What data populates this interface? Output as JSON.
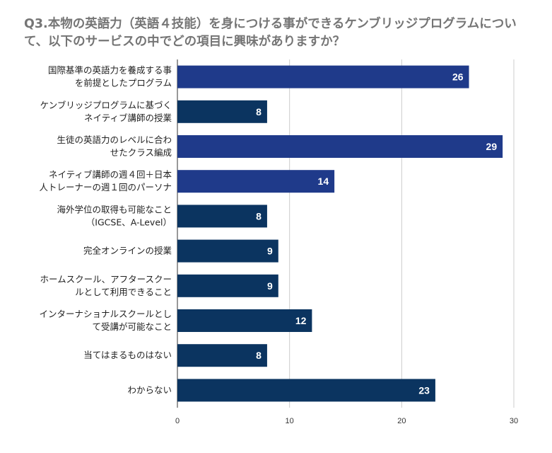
{
  "chart_data": {
    "type": "bar",
    "orientation": "horizontal",
    "title": "Q3.本物の英語力（英語４技能）を身につける事ができるケンブリッジプログラムについて、以下のサービスの中でどの項目に興味がありますか？",
    "categories": [
      [
        "国際基準の英語力を養成する事",
        "を前提としたプログラム"
      ],
      [
        "ケンブリッジプログラムに基づく",
        "ネイティブ講師の授業"
      ],
      [
        "生徒の英語力のレベルに合わ",
        "せたクラス編成"
      ],
      [
        "ネイティブ講師の週４回＋日本",
        "人トレーナーの週１回のパーソナ"
      ],
      [
        "海外学位の取得も可能なこと",
        "（IGCSE、A-Level）"
      ],
      [
        "完全オンラインの授業"
      ],
      [
        "ホームスクール、アフタースクー",
        "ルとして利用できること"
      ],
      [
        "インターナショナルスクールとし",
        "て受講が可能なこと"
      ],
      [
        "当てはまるものはない"
      ],
      [
        "わからない"
      ]
    ],
    "values": [
      26,
      8,
      29,
      14,
      8,
      9,
      9,
      12,
      8,
      23
    ],
    "colors": [
      "#1f3a8a",
      "#0b3460",
      "#1f3a8a",
      "#1f3a8a",
      "#0b3460",
      "#0b3460",
      "#0b3460",
      "#0b3460",
      "#0b3460",
      "#0b3460"
    ],
    "xlim": [
      0,
      30
    ],
    "xticks": [
      0,
      10,
      20,
      30
    ],
    "grid": true,
    "legend": "none"
  }
}
